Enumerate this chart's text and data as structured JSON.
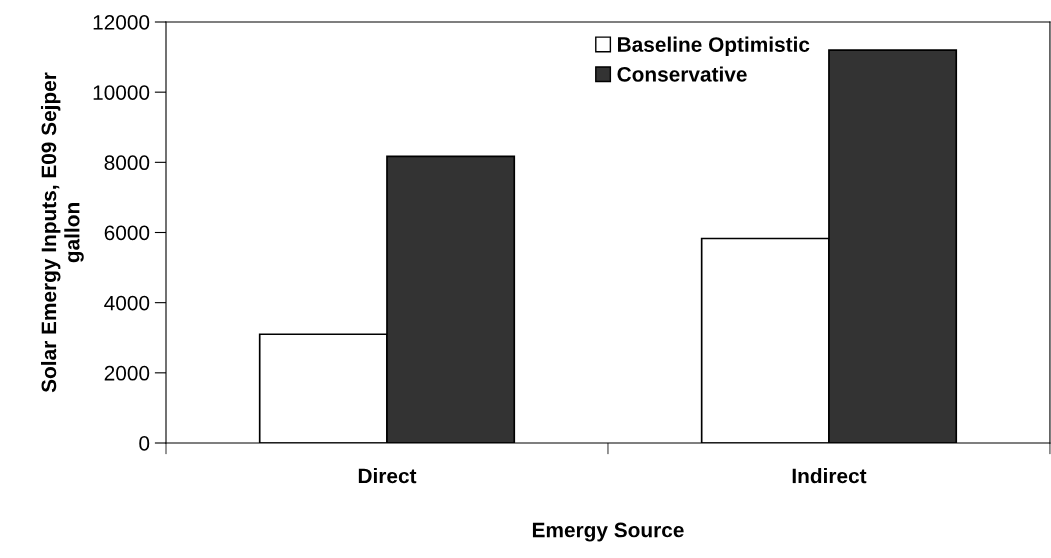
{
  "chart_data": {
    "type": "bar",
    "xlabel": "Emergy Source",
    "ylabel": "Solar Emergy Inputs, E09 Sejper\ngallon",
    "categories": [
      "Direct",
      "Indirect"
    ],
    "series": [
      {
        "name": "Baseline Optimistic",
        "color": "#ffffff",
        "values": [
          3100,
          5830
        ]
      },
      {
        "name": "Conservative",
        "color": "#333333",
        "values": [
          8170,
          11200
        ]
      }
    ],
    "ylim": [
      0,
      12000
    ],
    "yticks": [
      0,
      2000,
      4000,
      6000,
      8000,
      10000,
      12000
    ],
    "grid": false,
    "legend": "top right"
  }
}
